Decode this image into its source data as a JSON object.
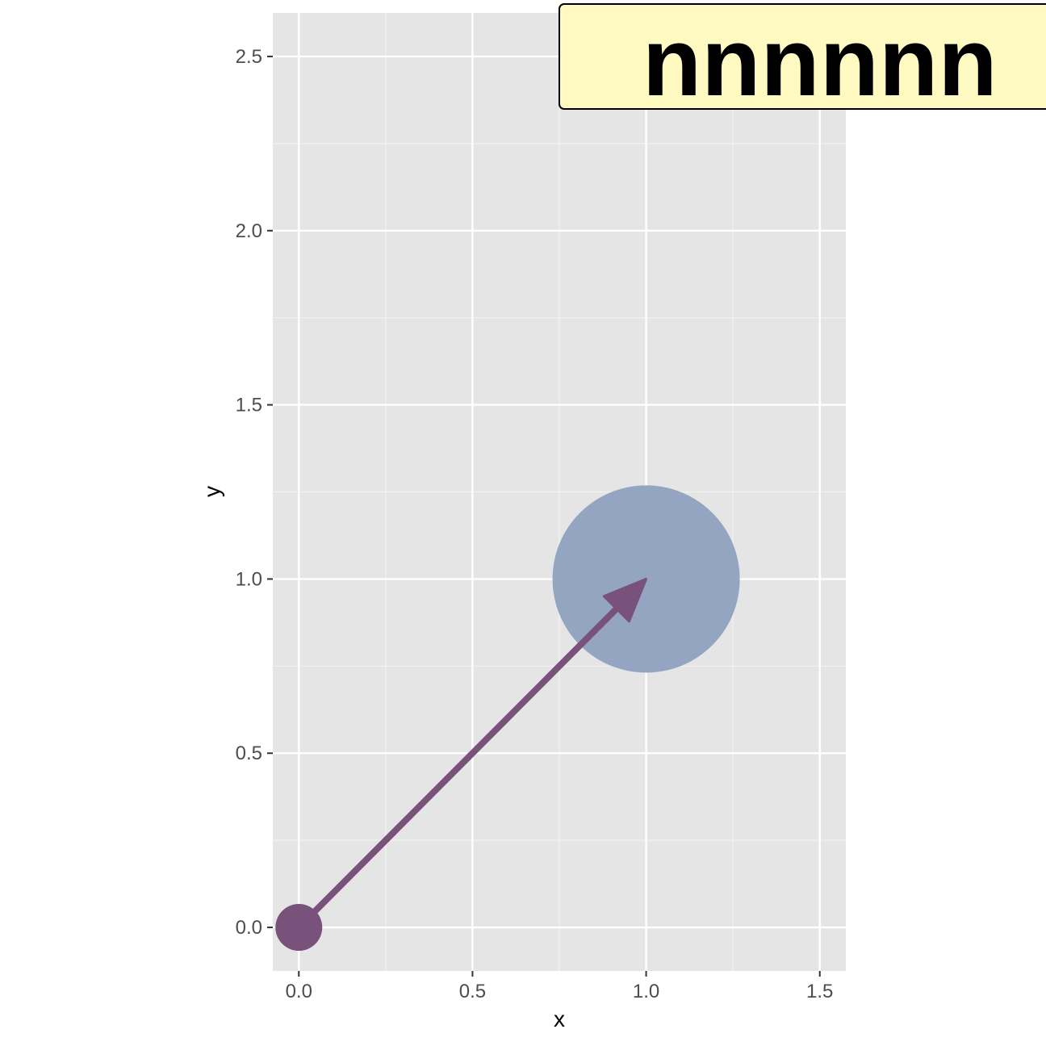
{
  "chart_data": {
    "type": "scatter",
    "title": "",
    "xlabel": "x",
    "ylabel": "y",
    "xlim": [
      -0.075,
      1.575
    ],
    "ylim": [
      -0.125,
      2.625
    ],
    "x_ticks": [
      0.0,
      0.5,
      1.0,
      1.5
    ],
    "x_tick_labels": [
      "0.0",
      "0.5",
      "1.0",
      "1.5"
    ],
    "y_ticks": [
      0.0,
      0.5,
      1.0,
      1.5,
      2.0,
      2.5
    ],
    "y_tick_labels": [
      "0.0",
      "0.5",
      "1.0",
      "1.5",
      "2.0",
      "2.5"
    ],
    "grid": true,
    "points": [
      {
        "x": 0.0,
        "y": 0.0,
        "size": "small",
        "color": "#79527b"
      },
      {
        "x": 1.0,
        "y": 1.0,
        "size": "large",
        "color": "#93a5c1"
      }
    ],
    "segments": [
      {
        "x0": 0.0,
        "y0": 0.0,
        "x1": 1.0,
        "y1": 1.0,
        "arrow": "end",
        "color": "#79527b"
      }
    ],
    "annotations": [
      {
        "text": "nnnnnn",
        "x": 1.5,
        "y": 2.5,
        "fill": "#fff9c2",
        "color": "#000000"
      }
    ]
  },
  "colors": {
    "panel_background": "#e5e5e5",
    "grid_major": "#ffffff",
    "grid_minor": "#f2f2f2"
  }
}
